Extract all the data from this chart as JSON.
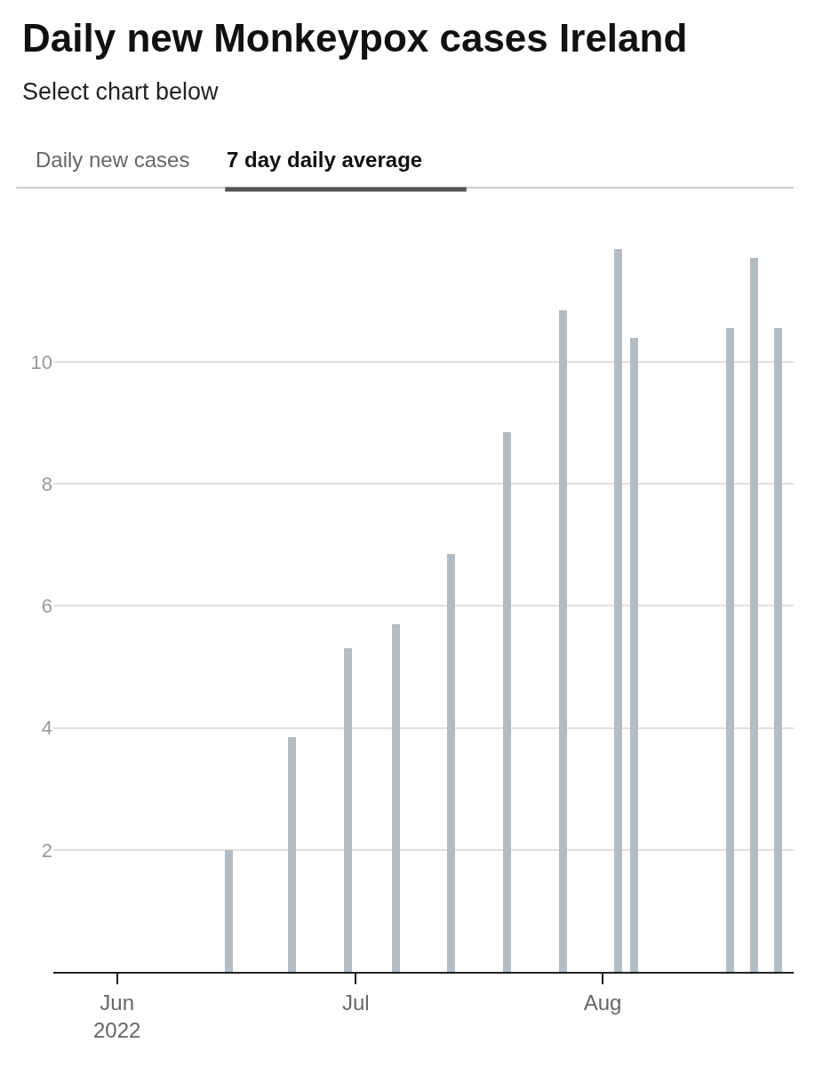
{
  "chart_data": {
    "type": "bar",
    "title": "Daily new Monkeypox cases Ireland",
    "subtitle": "Select chart below",
    "annotations": [
      "Daily new cases",
      "7 day daily average"
    ],
    "x": [
      "2022-06-15",
      "2022-06-23",
      "2022-06-30",
      "2022-07-06",
      "2022-07-13",
      "2022-07-20",
      "2022-07-27",
      "2022-08-03",
      "2022-08-05",
      "2022-08-17",
      "2022-08-20",
      "2022-08-23"
    ],
    "values": [
      2.0,
      3.85,
      5.3,
      5.7,
      6.85,
      8.85,
      10.85,
      11.85,
      10.4,
      10.55,
      11.7,
      10.55
    ],
    "color": "#b4bcc3",
    "xlim": [
      "2022-05-24",
      "2022-08-25"
    ],
    "xticks": [
      {
        "value": "2022-06-01",
        "label": "Jun\n2022"
      },
      {
        "value": "2022-07-01",
        "label": "Jul"
      },
      {
        "value": "2022-08-01",
        "label": "Aug"
      }
    ],
    "ylim": [
      0,
      12.8
    ],
    "yticks": [
      2,
      4,
      6,
      8,
      10
    ],
    "grid": "y",
    "legend": false
  }
}
